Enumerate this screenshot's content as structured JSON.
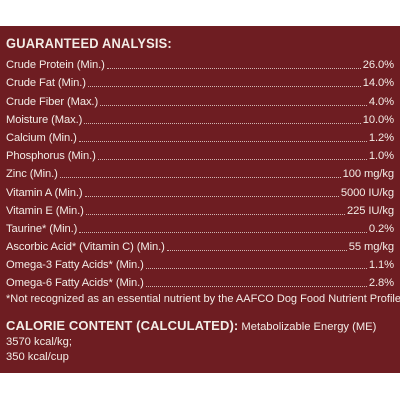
{
  "title": "GUARANTEED ANALYSIS:",
  "rows": [
    {
      "label": "Crude Protein (Min.)",
      "value": "26.0%"
    },
    {
      "label": "Crude Fat (Min.)",
      "value": "14.0%"
    },
    {
      "label": "Crude Fiber (Max.)",
      "value": "4.0%"
    },
    {
      "label": "Moisture (Max.)",
      "value": "10.0%"
    },
    {
      "label": "Calcium (Min.)",
      "value": "1.2%"
    },
    {
      "label": "Phosphorus (Min.)",
      "value": "1.0%"
    },
    {
      "label": "Zinc (Min.)",
      "value": "100 mg/kg"
    },
    {
      "label": "Vitamin A (Min.)",
      "value": "5000 IU/kg"
    },
    {
      "label": "Vitamin E (Min.)",
      "value": "225 IU/kg"
    },
    {
      "label": "Taurine* (Min.)",
      "value": "0.2%"
    },
    {
      "label": "Ascorbic Acid* (Vitamin C) (Min.)",
      "value": "55 mg/kg"
    },
    {
      "label": "Omega-3 Fatty Acids* (Min.)",
      "value": "1.1%"
    },
    {
      "label": "Omega-6 Fatty Acids* (Min.)",
      "value": "2.8%"
    }
  ],
  "footnote": "*Not recognized as an essential nutrient by the AAFCO Dog Food Nutrient Profiles.",
  "calorie": {
    "heading": "CALORIE CONTENT (CALCULATED):",
    "line1": "Metabolizable Energy (ME) 3570 kcal/kg;",
    "line2": "350 kcal/cup"
  },
  "colors": {
    "panel_background": "#6e1d22",
    "text": "#f3ece6"
  }
}
